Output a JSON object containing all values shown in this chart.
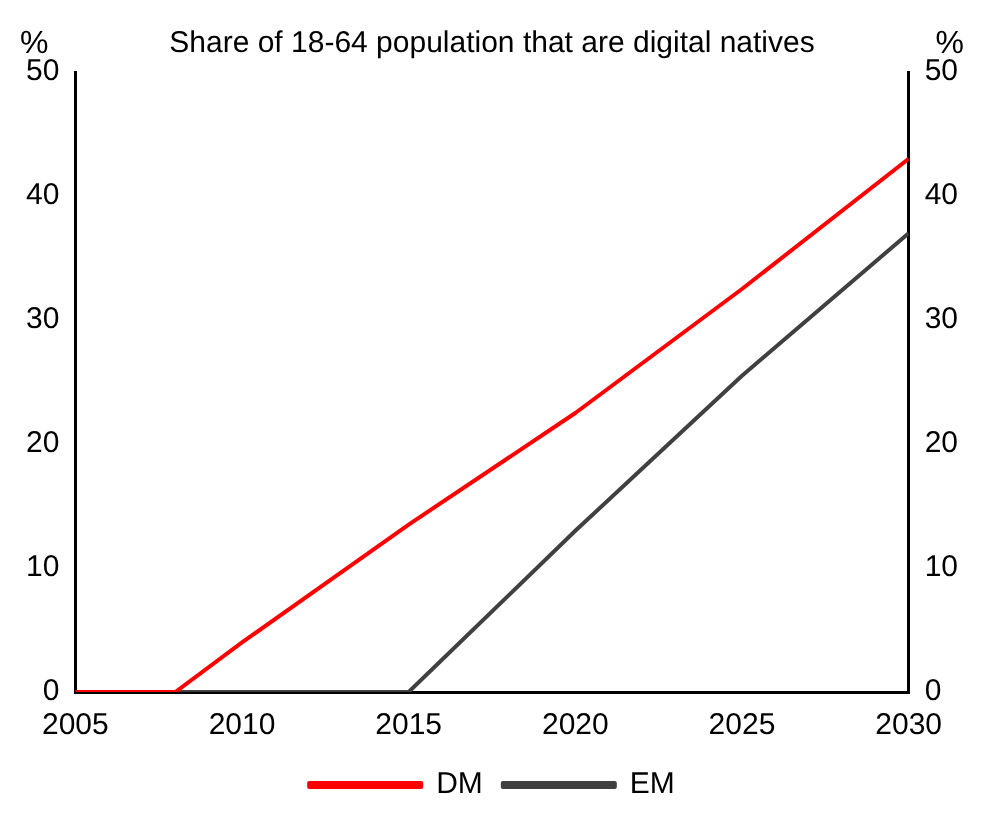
{
  "chart_data": {
    "type": "line",
    "title": "Share of 18-64 population that are digital natives",
    "ylabel": "%",
    "y2label": "%",
    "xlim": [
      2005,
      2030
    ],
    "xticks": [
      2005,
      2010,
      2015,
      2020,
      2025,
      2030
    ],
    "ylim": [
      0,
      50
    ],
    "yticks": [
      0,
      10,
      20,
      30,
      40,
      50
    ],
    "y2lim": [
      0,
      50
    ],
    "y2ticks": [
      0,
      10,
      20,
      30,
      40,
      50
    ],
    "grid": false,
    "legend": "bottom",
    "marker": "none",
    "line_style": "solid",
    "series": [
      {
        "name": "DM",
        "color": "#ff0000",
        "x": [
          2005,
          2008,
          2010,
          2015,
          2020,
          2025,
          2030
        ],
        "values": [
          0,
          0,
          4,
          13.5,
          22.5,
          32.5,
          43
        ]
      },
      {
        "name": "EM",
        "color": "#404040",
        "x": [
          2005,
          2015,
          2020,
          2025,
          2030
        ],
        "values": [
          0,
          0,
          13,
          25.5,
          37
        ]
      }
    ]
  }
}
